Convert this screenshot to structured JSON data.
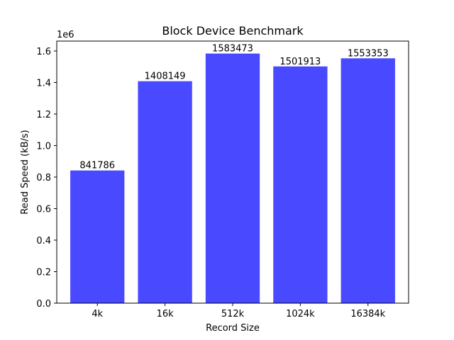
{
  "chart_data": {
    "type": "bar",
    "title": "Block Device Benchmark",
    "xlabel": "Record Size",
    "ylabel": "Read Speed (kB/s)",
    "y_offset_label": "1e6",
    "categories": [
      "4k",
      "16k",
      "512k",
      "1024k",
      "16384k"
    ],
    "values": [
      841786,
      1408149,
      1583473,
      1501913,
      1553353
    ],
    "data_labels": [
      "841786",
      "1408149",
      "1583473",
      "1501913",
      "1553353"
    ],
    "ylim": [
      0,
      1662646
    ],
    "y_ticks": [
      0,
      200000,
      400000,
      600000,
      800000,
      1000000,
      1200000,
      1400000,
      1600000
    ],
    "y_tick_labels": [
      "0.0",
      "0.2",
      "0.4",
      "0.6",
      "0.8",
      "1.0",
      "1.2",
      "1.4",
      "1.6"
    ],
    "bar_color": "#4949ff",
    "grid": false,
    "legend": "none"
  }
}
